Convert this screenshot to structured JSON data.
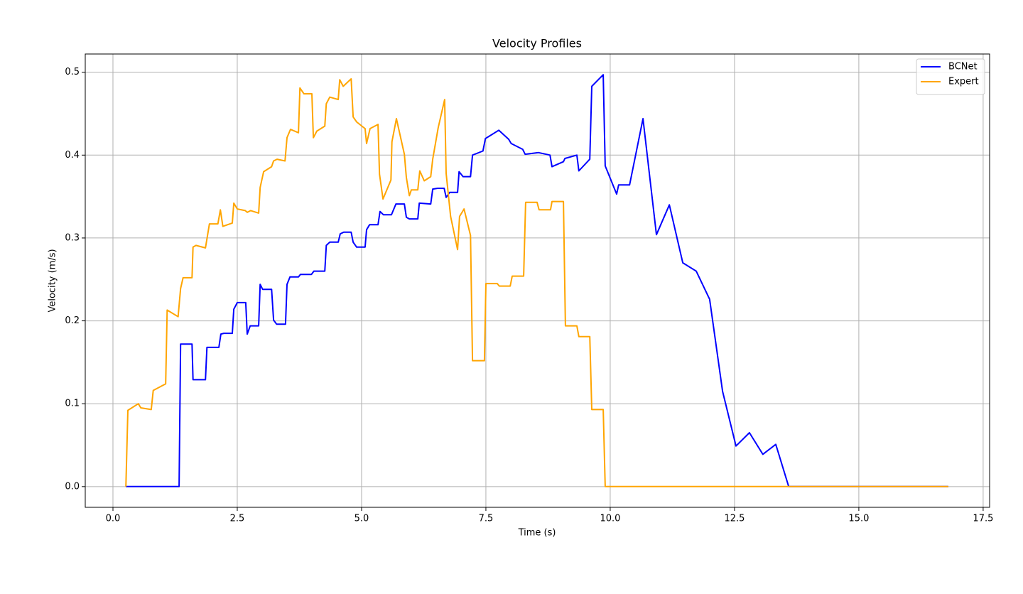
{
  "chart_data": {
    "type": "line",
    "title": "Velocity Profiles",
    "x_label": "Time (s)",
    "y_label": "Velocity (m/s)",
    "xlim": [
      -0.557,
      17.63
    ],
    "ylim": [
      -0.025,
      0.522
    ],
    "xticks": [
      {
        "value": 0,
        "label": "0.0"
      },
      2.5,
      {
        "value": 5,
        "label": "5.0"
      },
      7.5,
      {
        "value": 10,
        "label": "10.0"
      },
      12.5,
      {
        "value": 15,
        "label": "15.0"
      },
      17.5
    ],
    "yticks": [
      {
        "value": 0,
        "label": "0.0"
      },
      0.1,
      0.2,
      0.3,
      0.4,
      0.5
    ],
    "grid": true,
    "legend": "upper right",
    "series": [
      {
        "name": "BCNet",
        "color": "#0000ff",
        "x": [
          0.26,
          1.33,
          1.36,
          1.59,
          1.61,
          1.86,
          1.89,
          2.13,
          2.17,
          2.23,
          2.4,
          2.43,
          2.5,
          2.67,
          2.7,
          2.76,
          2.93,
          2.96,
          3.01,
          3.19,
          3.23,
          3.29,
          3.47,
          3.5,
          3.56,
          3.73,
          3.77,
          3.99,
          4.04,
          4.26,
          4.29,
          4.36,
          4.53,
          4.57,
          4.64,
          4.79,
          4.83,
          4.9,
          5.07,
          5.1,
          5.16,
          5.33,
          5.37,
          5.44,
          5.6,
          5.69,
          5.86,
          5.9,
          5.96,
          6.13,
          6.16,
          6.39,
          6.43,
          6.53,
          6.66,
          6.7,
          6.77,
          6.93,
          6.96,
          7.04,
          7.19,
          7.23,
          7.44,
          7.49,
          7.76,
          7.96,
          8.01,
          8.24,
          8.29,
          8.56,
          8.79,
          8.83,
          9.06,
          9.09,
          9.33,
          9.37,
          9.59,
          9.63,
          9.86,
          9.9,
          10.13,
          10.17,
          10.39,
          10.66,
          10.93,
          11.19,
          11.46,
          11.73,
          12.0,
          12.26,
          12.53,
          12.8,
          13.07,
          13.33,
          13.59,
          16.8
        ],
        "values": [
          0,
          0,
          0.172,
          0.172,
          0.129,
          0.129,
          0.168,
          0.168,
          0.184,
          0.185,
          0.185,
          0.214,
          0.222,
          0.222,
          0.184,
          0.194,
          0.194,
          0.244,
          0.238,
          0.238,
          0.201,
          0.196,
          0.196,
          0.244,
          0.253,
          0.253,
          0.256,
          0.256,
          0.26,
          0.26,
          0.291,
          0.295,
          0.295,
          0.305,
          0.307,
          0.307,
          0.295,
          0.289,
          0.289,
          0.31,
          0.316,
          0.316,
          0.332,
          0.328,
          0.328,
          0.341,
          0.341,
          0.325,
          0.323,
          0.323,
          0.342,
          0.341,
          0.359,
          0.36,
          0.36,
          0.349,
          0.355,
          0.355,
          0.38,
          0.374,
          0.374,
          0.4,
          0.405,
          0.42,
          0.43,
          0.419,
          0.414,
          0.407,
          0.401,
          0.403,
          0.4,
          0.386,
          0.392,
          0.396,
          0.4,
          0.381,
          0.395,
          0.483,
          0.497,
          0.387,
          0.353,
          0.364,
          0.364,
          0.444,
          0.304,
          0.34,
          0.27,
          0.26,
          0.226,
          0.115,
          0.049,
          0.065,
          0.039,
          0.051,
          0,
          0
        ]
      },
      {
        "name": "Expert",
        "color": "#ffa500",
        "x": [
          0.26,
          0.3,
          0.51,
          0.56,
          0.77,
          0.81,
          1.06,
          1.09,
          1.31,
          1.36,
          1.41,
          1.59,
          1.61,
          1.67,
          1.86,
          1.94,
          2.11,
          2.16,
          2.21,
          2.4,
          2.43,
          2.5,
          2.66,
          2.7,
          2.77,
          2.93,
          2.96,
          3.03,
          3.19,
          3.23,
          3.3,
          3.46,
          3.5,
          3.57,
          3.73,
          3.76,
          3.84,
          4.0,
          4.03,
          4.1,
          4.26,
          4.29,
          4.36,
          4.53,
          4.56,
          4.63,
          4.79,
          4.83,
          4.9,
          5.07,
          5.1,
          5.17,
          5.33,
          5.36,
          5.43,
          5.59,
          5.61,
          5.7,
          5.86,
          5.9,
          5.96,
          6.0,
          6.13,
          6.17,
          6.26,
          6.39,
          6.43,
          6.54,
          6.67,
          6.7,
          6.79,
          6.93,
          6.97,
          7.06,
          7.19,
          7.23,
          7.47,
          7.5,
          7.73,
          7.77,
          7.99,
          8.03,
          8.26,
          8.3,
          8.53,
          8.57,
          8.8,
          8.83,
          9.06,
          9.1,
          9.33,
          9.37,
          9.59,
          9.63,
          9.86,
          9.9,
          16.8
        ],
        "values": [
          0,
          0.092,
          0.1,
          0.095,
          0.093,
          0.116,
          0.124,
          0.213,
          0.205,
          0.239,
          0.252,
          0.252,
          0.289,
          0.291,
          0.288,
          0.317,
          0.317,
          0.334,
          0.314,
          0.318,
          0.342,
          0.335,
          0.333,
          0.331,
          0.333,
          0.33,
          0.361,
          0.38,
          0.386,
          0.393,
          0.395,
          0.393,
          0.421,
          0.431,
          0.427,
          0.481,
          0.474,
          0.474,
          0.421,
          0.429,
          0.435,
          0.462,
          0.47,
          0.467,
          0.491,
          0.483,
          0.492,
          0.446,
          0.44,
          0.432,
          0.414,
          0.432,
          0.437,
          0.377,
          0.347,
          0.37,
          0.416,
          0.444,
          0.401,
          0.373,
          0.351,
          0.358,
          0.358,
          0.381,
          0.369,
          0.374,
          0.395,
          0.433,
          0.467,
          0.378,
          0.326,
          0.286,
          0.326,
          0.335,
          0.303,
          0.152,
          0.152,
          0.245,
          0.245,
          0.242,
          0.242,
          0.254,
          0.254,
          0.343,
          0.343,
          0.334,
          0.334,
          0.344,
          0.344,
          0.194,
          0.194,
          0.181,
          0.181,
          0.093,
          0.093,
          0,
          0
        ]
      }
    ]
  }
}
